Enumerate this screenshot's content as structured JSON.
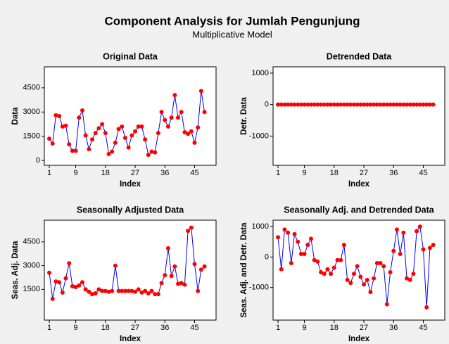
{
  "title": "Component Analysis for Jumlah Pengunjung",
  "subtitle": "Multiplicative Model",
  "chart_data": [
    {
      "type": "line",
      "title": "Original Data",
      "xlabel": "Index",
      "ylabel": "Data",
      "line_color": "#0000ff",
      "marker_color": "#ff0000",
      "xlim": [
        -0.5,
        51.5
      ],
      "xticks": [
        1,
        9,
        18,
        27,
        36,
        45
      ],
      "ylim": [
        -300,
        5800
      ],
      "yticks": [
        0,
        1500,
        3000,
        4500
      ],
      "x": [
        1,
        2,
        3,
        4,
        5,
        6,
        7,
        8,
        9,
        10,
        11,
        12,
        13,
        14,
        15,
        16,
        17,
        18,
        19,
        20,
        21,
        22,
        23,
        24,
        25,
        26,
        27,
        28,
        29,
        30,
        31,
        32,
        33,
        34,
        35,
        36,
        37,
        38,
        39,
        40,
        41,
        42,
        43,
        44,
        45,
        46,
        47,
        48
      ],
      "values": [
        1350,
        1050,
        2800,
        2750,
        2100,
        2150,
        1000,
        600,
        600,
        2650,
        3100,
        1550,
        700,
        1300,
        1700,
        2000,
        2250,
        1700,
        400,
        550,
        1100,
        1950,
        2100,
        1400,
        800,
        1550,
        1800,
        2100,
        2100,
        1300,
        350,
        550,
        500,
        1700,
        3000,
        2500,
        2100,
        2650,
        4050,
        2650,
        3000,
        1750,
        1650,
        1800,
        1100,
        2050,
        4300,
        3000
      ]
    },
    {
      "type": "line",
      "title": "Detrended Data",
      "xlabel": "Index",
      "ylabel": "Detr. Data",
      "line_color": "#0000ff",
      "marker_color": "#ff0000",
      "xlim": [
        -0.5,
        51.5
      ],
      "xticks": [
        1,
        9,
        18,
        27,
        36,
        45
      ],
      "ylim": [
        -1930,
        1200
      ],
      "yticks": [
        -1000,
        0,
        1000
      ],
      "x": [
        1,
        2,
        3,
        4,
        5,
        6,
        7,
        8,
        9,
        10,
        11,
        12,
        13,
        14,
        15,
        16,
        17,
        18,
        19,
        20,
        21,
        22,
        23,
        24,
        25,
        26,
        27,
        28,
        29,
        30,
        31,
        32,
        33,
        34,
        35,
        36,
        37,
        38,
        39,
        40,
        41,
        42,
        43,
        44,
        45,
        46,
        47,
        48
      ],
      "values": [
        0,
        0,
        0,
        0,
        0,
        0,
        0,
        0,
        0,
        0,
        0,
        0,
        0,
        0,
        0,
        0,
        0,
        0,
        0,
        0,
        0,
        0,
        0,
        0,
        0,
        0,
        0,
        0,
        0,
        0,
        0,
        0,
        0,
        0,
        0,
        0,
        0,
        0,
        0,
        0,
        0,
        0,
        0,
        0,
        0,
        0,
        0,
        0
      ]
    },
    {
      "type": "line",
      "title": "Seasonally Adjusted Data",
      "xlabel": "Index",
      "ylabel": "Seas. Adj. Data",
      "line_color": "#0000ff",
      "marker_color": "#ff0000",
      "xlim": [
        -0.5,
        51.5
      ],
      "xticks": [
        1,
        9,
        18,
        27,
        36,
        45
      ],
      "ylim": [
        -440,
        5870
      ],
      "yticks": [
        1500,
        3000,
        4500
      ],
      "x": [
        1,
        2,
        3,
        4,
        5,
        6,
        7,
        8,
        9,
        10,
        11,
        12,
        13,
        14,
        15,
        16,
        17,
        18,
        19,
        20,
        21,
        22,
        23,
        24,
        25,
        26,
        27,
        28,
        29,
        30,
        31,
        32,
        33,
        34,
        35,
        36,
        37,
        38,
        39,
        40,
        41,
        42,
        43,
        44,
        45,
        46,
        47,
        48
      ],
      "values": [
        2550,
        900,
        2000,
        1950,
        1300,
        2200,
        3150,
        1700,
        1650,
        1750,
        1950,
        1500,
        1350,
        1200,
        1250,
        1500,
        1400,
        1400,
        1350,
        1400,
        3000,
        1400,
        1400,
        1400,
        1400,
        1400,
        1350,
        1500,
        1300,
        1400,
        1250,
        1400,
        1200,
        1200,
        1900,
        2400,
        4100,
        2350,
        2950,
        1850,
        1900,
        1800,
        5200,
        5400,
        3100,
        1400,
        2750,
        2950
      ]
    },
    {
      "type": "line",
      "title": "Seasonally Adj. and Detrended Data",
      "xlabel": "Index",
      "ylabel": "Seas. Adj. and Detr. Data",
      "line_color": "#0000ff",
      "marker_color": "#ff0000",
      "xlim": [
        -0.5,
        51.5
      ],
      "xticks": [
        1,
        9,
        18,
        27,
        36,
        45
      ],
      "ylim": [
        -2070,
        1210
      ],
      "yticks": [
        -1000,
        0,
        1000
      ],
      "x": [
        1,
        2,
        3,
        4,
        5,
        6,
        7,
        8,
        9,
        10,
        11,
        12,
        13,
        14,
        15,
        16,
        17,
        18,
        19,
        20,
        21,
        22,
        23,
        24,
        25,
        26,
        27,
        28,
        29,
        30,
        31,
        32,
        33,
        34,
        35,
        36,
        37,
        38,
        39,
        40,
        41,
        42,
        43,
        44,
        45,
        46,
        47,
        48
      ],
      "values": [
        650,
        -400,
        900,
        800,
        -200,
        750,
        500,
        100,
        100,
        400,
        600,
        -100,
        -150,
        -500,
        -550,
        -400,
        -550,
        -350,
        -100,
        -100,
        400,
        -750,
        -850,
        -550,
        -300,
        -650,
        -900,
        -750,
        -1150,
        -700,
        -200,
        -200,
        -300,
        -1550,
        -500,
        200,
        900,
        100,
        800,
        -700,
        -750,
        -550,
        850,
        1000,
        250,
        -1650,
        300,
        400
      ]
    }
  ]
}
